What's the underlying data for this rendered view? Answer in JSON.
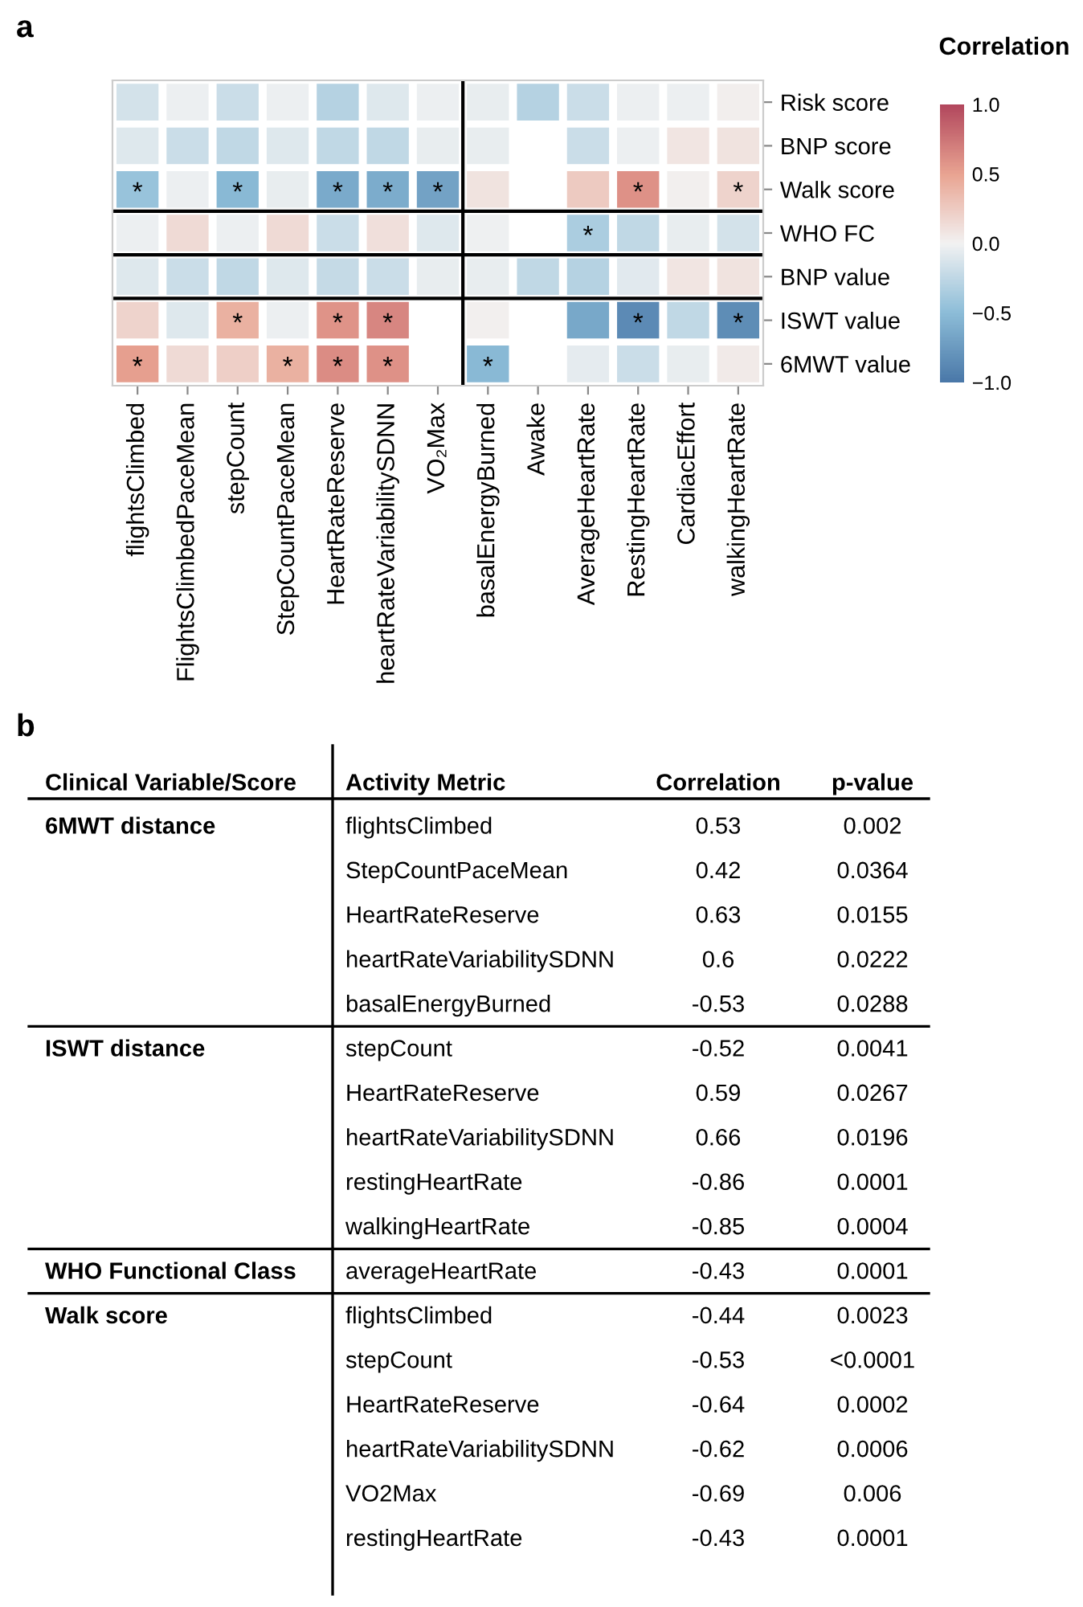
{
  "chart_data": [
    {
      "type": "heatmap",
      "title": "a",
      "clabel": "Correlation",
      "categories": [
        "flightsClimbed",
        "FlightsClimbedPaceMean",
        "stepCount",
        "StepCountPaceMean",
        "HeartRateReserve",
        "heartRateVariabilitySDNN",
        "VO₂Max",
        "basalEnergyBurned",
        "Awake",
        "AverageHeartRate",
        "RestingHeartRate",
        "CardiacEffort",
        "walkingHeartRate"
      ],
      "y_categories": [
        "Risk score",
        "BNP score",
        "Walk score",
        "WHO FC",
        "BNP value",
        "ISWT value",
        "6MWT value"
      ],
      "cells": [
        [
          -0.15,
          -0.03,
          -0.2,
          -0.03,
          -0.3,
          -0.1,
          -0.03,
          -0.05,
          -0.3,
          -0.2,
          -0.03,
          -0.03,
          0.03
        ],
        [
          -0.1,
          -0.2,
          -0.25,
          -0.1,
          -0.25,
          -0.25,
          -0.05,
          -0.05,
          null,
          -0.2,
          -0.03,
          0.08,
          0.1
        ],
        [
          -0.44,
          -0.03,
          -0.53,
          -0.05,
          -0.64,
          -0.62,
          -0.69,
          0.1,
          null,
          0.25,
          0.6,
          0.02,
          0.2
        ],
        [
          -0.03,
          0.15,
          -0.03,
          0.15,
          -0.2,
          0.12,
          -0.1,
          -0.02,
          null,
          -0.35,
          -0.25,
          -0.05,
          -0.15
        ],
        [
          -0.1,
          -0.2,
          -0.25,
          -0.1,
          -0.22,
          -0.2,
          -0.05,
          -0.05,
          -0.25,
          -0.3,
          -0.08,
          0.08,
          0.1
        ],
        [
          0.2,
          -0.1,
          0.42,
          -0.03,
          0.59,
          0.66,
          null,
          0.02,
          null,
          -0.65,
          -0.86,
          -0.25,
          -0.85
        ],
        [
          0.53,
          0.15,
          0.22,
          0.42,
          0.63,
          0.6,
          null,
          -0.53,
          null,
          -0.07,
          -0.2,
          -0.05,
          0.05
        ]
      ],
      "cell_labels": [
        [
          null,
          null,
          null,
          null,
          null,
          null,
          null,
          null,
          null,
          null,
          null,
          null,
          null
        ],
        [
          null,
          null,
          null,
          null,
          null,
          null,
          null,
          null,
          null,
          null,
          null,
          null,
          null
        ],
        [
          "*",
          null,
          "*",
          null,
          "*",
          "*",
          "*",
          null,
          null,
          null,
          "*",
          null,
          "*"
        ],
        [
          null,
          null,
          null,
          null,
          null,
          null,
          null,
          null,
          null,
          "*",
          null,
          null,
          null
        ],
        [
          null,
          null,
          null,
          null,
          null,
          null,
          null,
          null,
          null,
          null,
          null,
          null,
          null
        ],
        [
          null,
          null,
          "*",
          null,
          "*",
          "*",
          null,
          null,
          null,
          null,
          "*",
          null,
          "*"
        ],
        [
          "*",
          null,
          null,
          "*",
          "*",
          "*",
          null,
          "*",
          null,
          null,
          null,
          null,
          null
        ]
      ],
      "clim": [
        -1.0,
        1.0
      ],
      "cticks": [
        {
          "value": -1.0,
          "label": "−1.0"
        },
        {
          "value": -0.5,
          "label": "−0.5"
        },
        {
          "value": 0.0,
          "label": "0.0"
        },
        {
          "value": 0.5,
          "label": "0.5"
        },
        {
          "value": 1.0,
          "label": "1.0"
        }
      ]
    },
    {
      "type": "other",
      "title": "b",
      "annotations": [
        "Clinical Variable/Score",
        "Activity Metric",
        "Correlation",
        "p-value",
        "6MWT distance",
        "flightsClimbed",
        "0.53",
        "0.002",
        null,
        "StepCountPaceMean",
        "0.42",
        "0.0364",
        null,
        "HeartRateReserve",
        "0.63",
        "0.0155",
        null,
        "heartRateVariabilitySDNN",
        "0.6",
        "0.0222",
        null,
        "basalEnergyBurned",
        "-0.53",
        "0.0288",
        "ISWT distance",
        "stepCount",
        "-0.52",
        "0.0041",
        null,
        "HeartRateReserve",
        "0.59",
        "0.0267",
        null,
        "heartRateVariabilitySDNN",
        "0.66",
        "0.0196",
        null,
        "restingHeartRate",
        "-0.86",
        "0.0001",
        null,
        "walkingHeartRate",
        "-0.85",
        "0.0004",
        "WHO Functional Class",
        "averageHeartRate",
        "-0.43",
        "0.0001",
        "Walk score",
        "flightsClimbed",
        "-0.44",
        "0.0023",
        null,
        "stepCount",
        "-0.53",
        "<0.0001",
        null,
        "HeartRateReserve",
        "-0.64",
        "0.0002",
        null,
        "heartRateVariabilitySDNN",
        "-0.62",
        "0.0006",
        null,
        "VO2Max",
        "-0.69",
        "0.006",
        null,
        "restingHeartRate",
        "-0.43",
        "0.0001"
      ]
    }
  ]
}
